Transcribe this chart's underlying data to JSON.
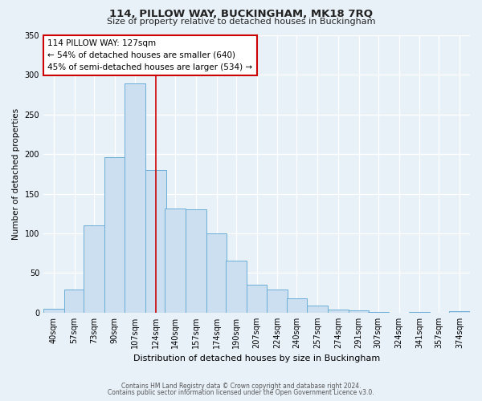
{
  "title": "114, PILLOW WAY, BUCKINGHAM, MK18 7RQ",
  "subtitle": "Size of property relative to detached houses in Buckingham",
  "xlabel": "Distribution of detached houses by size in Buckingham",
  "ylabel": "Number of detached properties",
  "bin_labels": [
    "40sqm",
    "57sqm",
    "73sqm",
    "90sqm",
    "107sqm",
    "124sqm",
    "140sqm",
    "157sqm",
    "174sqm",
    "190sqm",
    "207sqm",
    "224sqm",
    "240sqm",
    "257sqm",
    "274sqm",
    "291sqm",
    "307sqm",
    "324sqm",
    "341sqm",
    "357sqm",
    "374sqm"
  ],
  "bar_heights": [
    5,
    29,
    110,
    196,
    289,
    180,
    131,
    130,
    100,
    66,
    35,
    29,
    18,
    9,
    4,
    3,
    1,
    0,
    1,
    0,
    2
  ],
  "bar_color": "#ccdff0",
  "bar_edge_color": "#6aaed6",
  "ylim": [
    0,
    350
  ],
  "yticks": [
    0,
    50,
    100,
    150,
    200,
    250,
    300,
    350
  ],
  "property_line_x": 124,
  "property_line_color": "#cc0000",
  "annotation_title": "114 PILLOW WAY: 127sqm",
  "annotation_line1": "← 54% of detached houses are smaller (640)",
  "annotation_line2": "45% of semi-detached houses are larger (534) →",
  "annotation_box_color": "#ffffff",
  "annotation_box_edge": "#cc0000",
  "bg_color": "#e8f0f8",
  "grid_color": "#ffffff",
  "footnote1": "Contains HM Land Registry data © Crown copyright and database right 2024.",
  "footnote2": "Contains public sector information licensed under the Open Government Licence v3.0."
}
